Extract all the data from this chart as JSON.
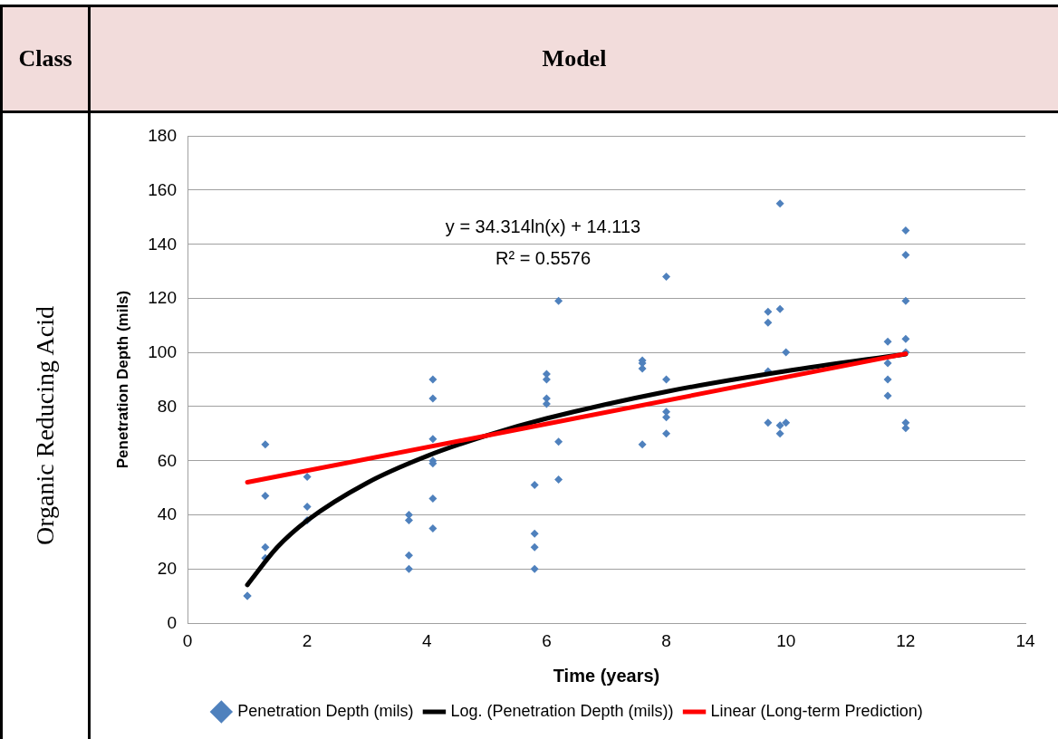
{
  "chart_data": {
    "type": "scatter",
    "xlabel": "Time (years)",
    "ylabel": "Penetration Depth (mils)",
    "annotations": [
      "Class",
      "Model",
      "Organic Reducing Acid",
      "y = 34.314ln(x) + 14.113",
      "R² = 0.5576"
    ],
    "xlim": [
      0,
      14
    ],
    "xticks": [
      0,
      2,
      4,
      6,
      8,
      10,
      12,
      14
    ],
    "ylim": [
      0,
      180
    ],
    "yticks": [
      0,
      20,
      40,
      60,
      80,
      100,
      120,
      140,
      160,
      180
    ],
    "grid": "y",
    "legend": "bottom",
    "series": [
      {
        "name": "Penetration Depth (mils)",
        "type": "scatter",
        "marker": "diamond",
        "color": "#4f81bd",
        "x": [
          1,
          1,
          1.3,
          1.3,
          1.3,
          1.3,
          2,
          2,
          2,
          3.7,
          3.7,
          3.7,
          3.7,
          4.1,
          4.1,
          4.1,
          4.1,
          4.1,
          4.1,
          4.1,
          5.8,
          5.8,
          5.8,
          5.8,
          6,
          6,
          6,
          6,
          6.2,
          6.2,
          6.2,
          7.6,
          7.6,
          7.6,
          7.6,
          8,
          8,
          8,
          8,
          8,
          9.7,
          9.7,
          9.7,
          9.7,
          9.9,
          9.9,
          9.9,
          9.9,
          10,
          10,
          11.7,
          11.7,
          11.7,
          11.7,
          12,
          12,
          12,
          12,
          12,
          12,
          12
        ],
        "values": [
          10,
          10,
          66,
          47,
          28,
          24,
          54,
          43,
          38,
          40,
          38,
          25,
          20,
          90,
          83,
          68,
          60,
          59,
          46,
          35,
          51,
          33,
          28,
          20,
          92,
          90,
          83,
          81,
          119,
          67,
          53,
          97,
          96,
          94,
          66,
          128,
          90,
          78,
          76,
          70,
          115,
          111,
          93,
          74,
          155,
          116,
          73,
          70,
          100,
          74,
          104,
          96,
          90,
          84,
          145,
          136,
          119,
          105,
          100,
          74,
          72
        ]
      },
      {
        "name": "Log. (Penetration Depth (mils))",
        "type": "line",
        "marker": "none",
        "color": "#000000",
        "x": [
          1,
          1.5,
          2,
          3,
          4,
          5,
          6,
          8,
          10,
          12
        ],
        "values": [
          14.1,
          28,
          37.9,
          51.8,
          61.7,
          69.3,
          75.6,
          85.5,
          93.1,
          99.4
        ]
      },
      {
        "name": "Linear (Long-term Prediction)",
        "type": "line",
        "marker": "none",
        "color": "#ff0000",
        "x": [
          1,
          12
        ],
        "values": [
          52,
          99.5
        ]
      }
    ]
  }
}
